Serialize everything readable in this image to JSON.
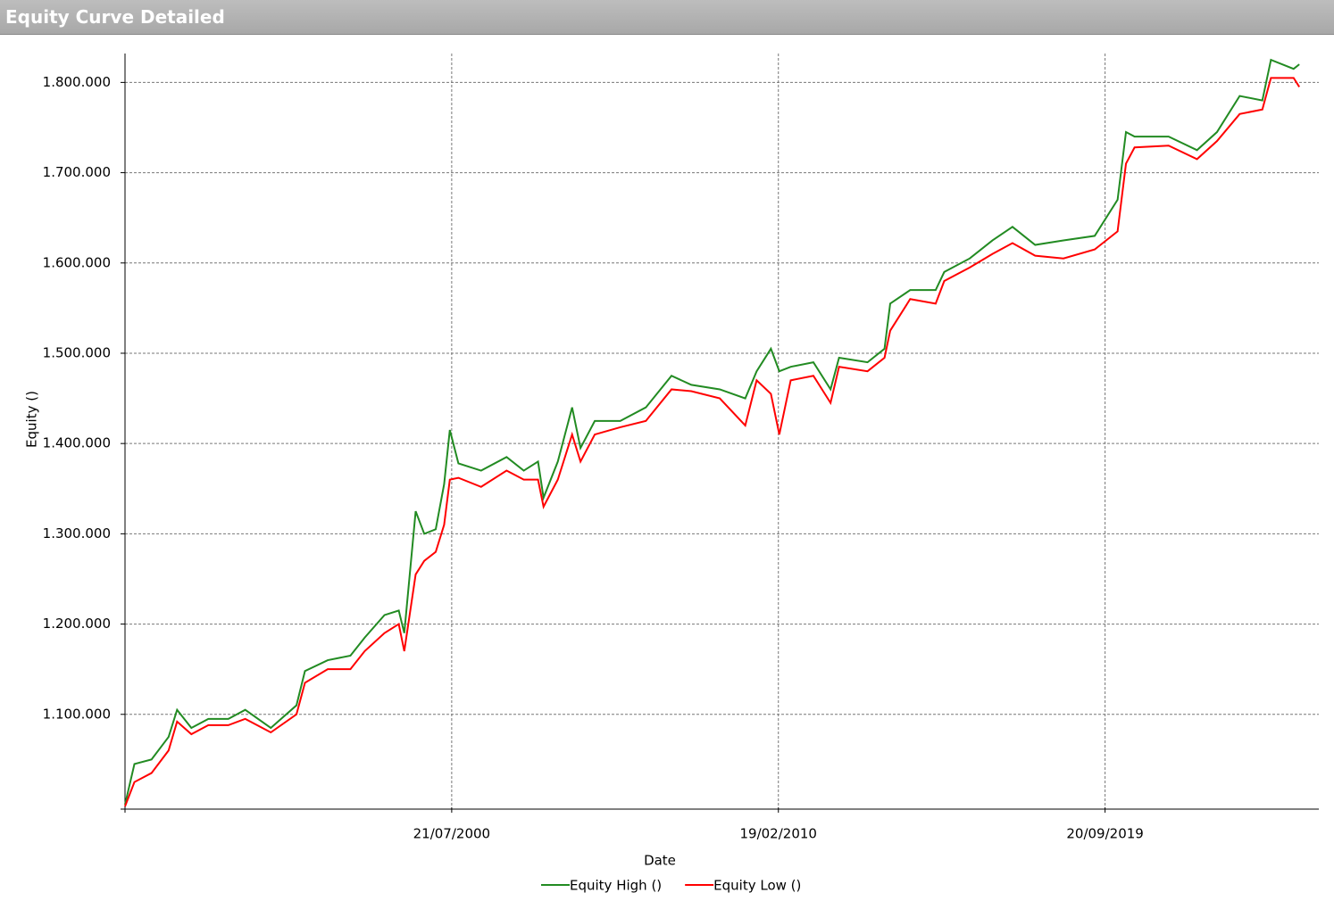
{
  "chart_data": {
    "type": "line",
    "title": "Equity Curve Detailed",
    "x_label": "Date",
    "y_label": "Equity ()",
    "x": [
      "1990-12-21",
      "1991-04-01",
      "1991-10-01",
      "1992-04-01",
      "1992-07-01",
      "1992-12-01",
      "1993-06-01",
      "1994-01-01",
      "1994-07-01",
      "1995-04-01",
      "1996-01-01",
      "1996-04-01",
      "1996-12-01",
      "1997-08-01",
      "1998-01-01",
      "1998-08-01",
      "1999-01-01",
      "1999-03-01",
      "1999-07-01",
      "1999-10-01",
      "2000-02-01",
      "2000-05-01",
      "2000-07-01",
      "2000-10-01",
      "2001-06-01",
      "2002-03-01",
      "2002-09-01",
      "2003-02-01",
      "2003-04-01",
      "2003-09-01",
      "2004-02-01",
      "2004-05-01",
      "2004-10-01",
      "2005-07-01",
      "2006-04-01",
      "2007-01-01",
      "2007-08-01",
      "2008-06-01",
      "2009-03-01",
      "2009-07-01",
      "2009-12-01",
      "2010-03-01",
      "2010-07-01",
      "2011-03-01",
      "2011-09-01",
      "2011-12-01",
      "2012-10-01",
      "2013-04-01",
      "2013-06-01",
      "2014-01-01",
      "2014-10-01",
      "2015-01-01",
      "2015-10-01",
      "2016-06-01",
      "2017-01-01",
      "2017-09-01",
      "2018-07-01",
      "2019-06-01",
      "2020-02-01",
      "2020-05-01",
      "2020-08-01",
      "2021-08-01",
      "2022-06-01",
      "2023-01-01",
      "2023-09-01",
      "2024-05-01",
      "2024-08-01",
      "2025-04-01",
      "2025-06-01"
    ],
    "series": [
      {
        "name": "Equity High ()",
        "color": "#228b22",
        "values": [
          1000000,
          1045000,
          1050000,
          1075000,
          1105000,
          1085000,
          1095000,
          1095000,
          1105000,
          1085000,
          1110000,
          1148000,
          1160000,
          1165000,
          1185000,
          1210000,
          1215000,
          1190000,
          1325000,
          1300000,
          1305000,
          1355000,
          1415000,
          1378000,
          1370000,
          1385000,
          1370000,
          1380000,
          1340000,
          1380000,
          1440000,
          1395000,
          1425000,
          1425000,
          1440000,
          1475000,
          1465000,
          1460000,
          1450000,
          1480000,
          1505000,
          1480000,
          1485000,
          1490000,
          1460000,
          1495000,
          1490000,
          1505000,
          1555000,
          1570000,
          1570000,
          1590000,
          1605000,
          1625000,
          1640000,
          1620000,
          1625000,
          1630000,
          1670000,
          1745000,
          1740000,
          1740000,
          1725000,
          1745000,
          1785000,
          1780000,
          1825000,
          1815000,
          1820000
        ]
      },
      {
        "name": "Equity Low ()",
        "color": "#ff0000",
        "values": [
          998000,
          1025000,
          1035000,
          1060000,
          1092000,
          1078000,
          1088000,
          1088000,
          1095000,
          1080000,
          1100000,
          1135000,
          1150000,
          1150000,
          1170000,
          1190000,
          1200000,
          1170000,
          1255000,
          1270000,
          1280000,
          1310000,
          1360000,
          1362000,
          1352000,
          1370000,
          1360000,
          1360000,
          1330000,
          1360000,
          1410000,
          1380000,
          1410000,
          1418000,
          1425000,
          1460000,
          1458000,
          1450000,
          1420000,
          1470000,
          1455000,
          1410000,
          1470000,
          1475000,
          1445000,
          1485000,
          1480000,
          1495000,
          1525000,
          1560000,
          1555000,
          1580000,
          1595000,
          1610000,
          1622000,
          1608000,
          1605000,
          1615000,
          1635000,
          1710000,
          1728000,
          1730000,
          1715000,
          1735000,
          1765000,
          1770000,
          1805000,
          1805000,
          1795000
        ]
      }
    ],
    "xlim": [
      "1990-12-21",
      "2025-12-27"
    ],
    "xticks": [
      {
        "value": "2000-07-21",
        "label": "21/07/2000"
      },
      {
        "value": "2010-02-19",
        "label": "19/02/2010"
      },
      {
        "value": "2019-09-20",
        "label": "20/09/2019"
      }
    ],
    "ylim": [
      997000,
      1832000
    ],
    "yticks": [
      {
        "value": 1100000,
        "label": "1.100.000"
      },
      {
        "value": 1200000,
        "label": "1.200.000"
      },
      {
        "value": 1300000,
        "label": "1.300.000"
      },
      {
        "value": 1400000,
        "label": "1.400.000"
      },
      {
        "value": 1500000,
        "label": "1.500.000"
      },
      {
        "value": 1600000,
        "label": "1.600.000"
      },
      {
        "value": 1700000,
        "label": "1.700.000"
      },
      {
        "value": 1800000,
        "label": "1.800.000"
      }
    ],
    "grid": true,
    "legend": "bottom"
  }
}
